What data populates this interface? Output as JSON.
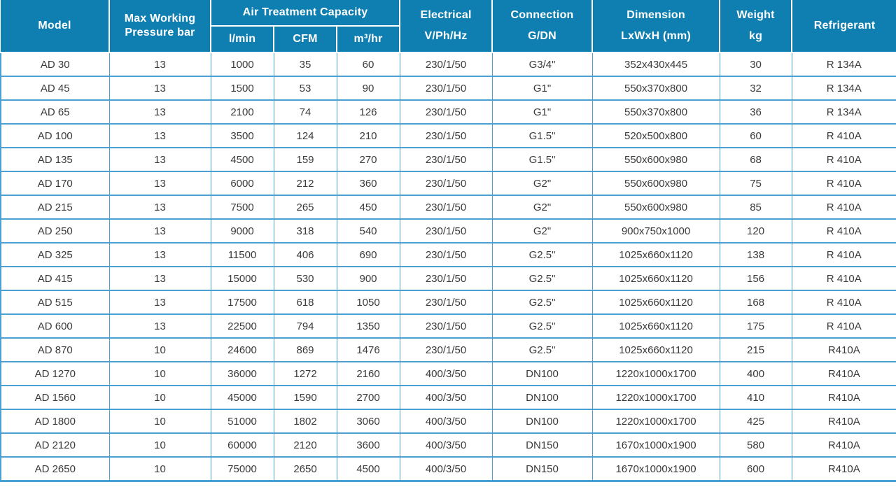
{
  "colors": {
    "header_bg": "#0f7fb1",
    "header_text": "#ffffff",
    "body_border": "#4b9fd1",
    "body_text": "#3a3a3a"
  },
  "table": {
    "header": {
      "model": "Model",
      "max_pressure": "Max Working Pressure bar",
      "air_treatment_capacity": "Air Treatment Capacity",
      "capacity_units": [
        "l/min",
        "CFM",
        "m³/hr"
      ],
      "electrical_line1": "Electrical",
      "electrical_line2": "V/Ph/Hz",
      "connection_line1": "Connection",
      "connection_line2": "G/DN",
      "dimension_line1": "Dimension",
      "dimension_line2": "LxWxH (mm)",
      "weight_line1": "Weight",
      "weight_line2": "kg",
      "refrigerant": "Refrigerant"
    },
    "rows": [
      [
        "AD 30",
        "13",
        "1000",
        "35",
        "60",
        "230/1/50",
        "G3/4\"",
        "352x430x445",
        "30",
        "R 134A"
      ],
      [
        "AD 45",
        "13",
        "1500",
        "53",
        "90",
        "230/1/50",
        "G1\"",
        "550x370x800",
        "32",
        "R 134A"
      ],
      [
        "AD 65",
        "13",
        "2100",
        "74",
        "126",
        "230/1/50",
        "G1\"",
        "550x370x800",
        "36",
        "R 134A"
      ],
      [
        "AD 100",
        "13",
        "3500",
        "124",
        "210",
        "230/1/50",
        "G1.5\"",
        "520x500x800",
        "60",
        "R 410A"
      ],
      [
        "AD 135",
        "13",
        "4500",
        "159",
        "270",
        "230/1/50",
        "G1.5\"",
        "550x600x980",
        "68",
        "R 410A"
      ],
      [
        "AD 170",
        "13",
        "6000",
        "212",
        "360",
        "230/1/50",
        "G2\"",
        "550x600x980",
        "75",
        "R 410A"
      ],
      [
        "AD 215",
        "13",
        "7500",
        "265",
        "450",
        "230/1/50",
        "G2\"",
        "550x600x980",
        "85",
        "R 410A"
      ],
      [
        "AD 250",
        "13",
        "9000",
        "318",
        "540",
        "230/1/50",
        "G2\"",
        "900x750x1000",
        "120",
        "R 410A"
      ],
      [
        "AD 325",
        "13",
        "11500",
        "406",
        "690",
        "230/1/50",
        "G2.5\"",
        "1025x660x1120",
        "138",
        "R 410A"
      ],
      [
        "AD 415",
        "13",
        "15000",
        "530",
        "900",
        "230/1/50",
        "G2.5\"",
        "1025x660x1120",
        "156",
        "R 410A"
      ],
      [
        "AD 515",
        "13",
        "17500",
        "618",
        "1050",
        "230/1/50",
        "G2.5\"",
        "1025x660x1120",
        "168",
        "R 410A"
      ],
      [
        "AD 600",
        "13",
        "22500",
        "794",
        "1350",
        "230/1/50",
        "G2.5\"",
        "1025x660x1120",
        "175",
        "R 410A"
      ],
      [
        "AD 870",
        "10",
        "24600",
        "869",
        "1476",
        "230/1/50",
        "G2.5\"",
        "1025x660x1120",
        "215",
        "R410A"
      ],
      [
        "AD 1270",
        "10",
        "36000",
        "1272",
        "2160",
        "400/3/50",
        "DN100",
        "1220x1000x1700",
        "400",
        "R410A"
      ],
      [
        "AD 1560",
        "10",
        "45000",
        "1590",
        "2700",
        "400/3/50",
        "DN100",
        "1220x1000x1700",
        "410",
        "R410A"
      ],
      [
        "AD 1800",
        "10",
        "51000",
        "1802",
        "3060",
        "400/3/50",
        "DN100",
        "1220x1000x1700",
        "425",
        "R410A"
      ],
      [
        "AD 2120",
        "10",
        "60000",
        "2120",
        "3600",
        "400/3/50",
        "DN150",
        "1670x1000x1900",
        "580",
        "R410A"
      ],
      [
        "AD 2650",
        "10",
        "75000",
        "2650",
        "4500",
        "400/3/50",
        "DN150",
        "1670x1000x1900",
        "600",
        "R410A"
      ]
    ]
  }
}
